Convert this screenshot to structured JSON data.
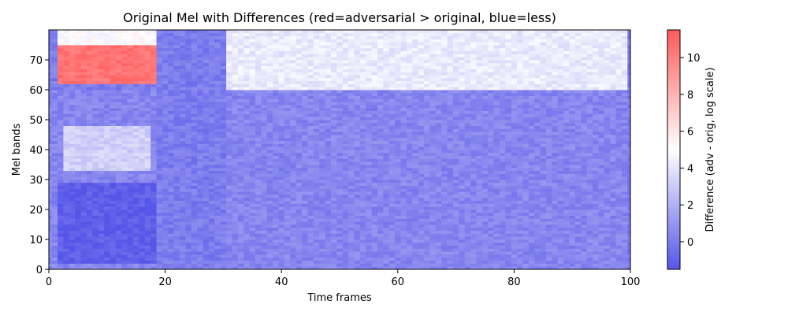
{
  "chart_data": {
    "type": "heatmap",
    "title": "Original Mel with Differences (red=adversarial > original, blue=less)",
    "xlabel": "Time frames",
    "ylabel": "Mel bands",
    "xlim": [
      0,
      100
    ],
    "ylim": [
      0,
      80
    ],
    "x_ticks": [
      0,
      20,
      40,
      60,
      80,
      100
    ],
    "y_ticks": [
      0,
      10,
      20,
      30,
      40,
      50,
      60,
      70
    ],
    "grid": false,
    "colorbar": {
      "label": "Difference (adv - orig, log scale)",
      "range": [
        -1.5,
        11.5
      ],
      "ticks": [
        0,
        2,
        4,
        6,
        8,
        10
      ],
      "colors": [
        "#5555e8",
        "#ffffff",
        "#ff5a5a"
      ]
    },
    "regions": [
      {
        "name": "low-band background",
        "frames": [
          0,
          100
        ],
        "bands": [
          0,
          60
        ],
        "value": 0.4
      },
      {
        "name": "high-band region",
        "frames": [
          31,
          100
        ],
        "bands": [
          60,
          80
        ],
        "value": 4.2
      },
      {
        "name": "speech onset red patch",
        "frames": [
          2,
          19
        ],
        "bands": [
          62,
          75
        ],
        "value": 10.5
      },
      {
        "name": "speech onset white band",
        "frames": [
          2,
          19
        ],
        "bands": [
          75,
          80
        ],
        "value": 5.0
      },
      {
        "name": "mid-band light region",
        "frames": [
          3,
          18
        ],
        "bands": [
          33,
          48
        ],
        "value": 3.2
      },
      {
        "name": "low-band dark region",
        "frames": [
          2,
          19
        ],
        "bands": [
          2,
          29
        ],
        "value": -1.2
      },
      {
        "name": "gap region",
        "frames": [
          19,
          31
        ],
        "bands": [
          0,
          80
        ],
        "value": 0.0
      }
    ]
  }
}
